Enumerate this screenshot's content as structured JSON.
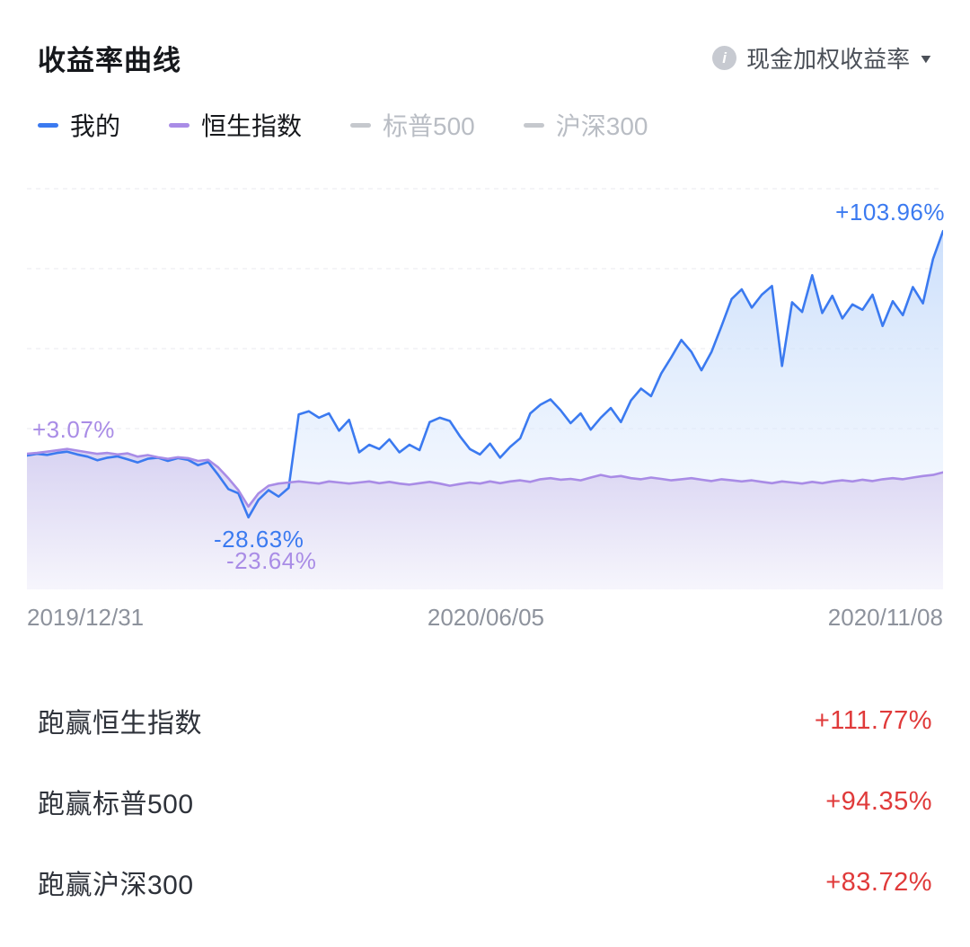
{
  "header": {
    "title": "收益率曲线",
    "return_type": "现金加权收益率",
    "info_glyph": "i",
    "caret_icon": "▼"
  },
  "legend": {
    "items": [
      {
        "label": "我的",
        "color": "#3b7af0",
        "active": true
      },
      {
        "label": "恒生指数",
        "color": "#a98ce6",
        "active": true
      },
      {
        "label": "标普500",
        "color": "#c5c8cd",
        "active": false
      },
      {
        "label": "沪深300",
        "color": "#c5c8cd",
        "active": false
      }
    ]
  },
  "chart_data": {
    "type": "line",
    "title": "收益率曲线",
    "x_axis_labels": [
      "2019/12/31",
      "2020/06/05",
      "2020/11/08"
    ],
    "ylim": [
      -62,
      124
    ],
    "grid": "dashed-horizontal",
    "legend_position": "top",
    "series": [
      {
        "name": "我的",
        "color": "#3b7af0",
        "fill_top": "#c7dcfb",
        "fill_bottom": "#eaf2fd",
        "fill_opacity_top": 0.92,
        "fill_opacity_bottom": 0.25,
        "values": [
          0,
          0.8,
          0.3,
          1.2,
          1.8,
          0.5,
          -0.5,
          -2.2,
          -1.0,
          -0.4,
          -1.8,
          -3.2,
          -1.5,
          -1.0,
          -2.5,
          -1.2,
          -2.0,
          -4.5,
          -3.0,
          -9.0,
          -15.5,
          -17.5,
          -28.63,
          -20.5,
          -16.0,
          -19.0,
          -15.0,
          19.0,
          20.5,
          17.5,
          19.5,
          11.5,
          16.5,
          1.5,
          5.0,
          3.0,
          7.5,
          1.5,
          5.0,
          2.5,
          15.5,
          17.5,
          16.0,
          9.0,
          3.0,
          0.5,
          5.5,
          -1.0,
          4.0,
          8.0,
          19.5,
          23.5,
          26.0,
          21.0,
          15.0,
          19.5,
          12.0,
          17.5,
          22.0,
          15.5,
          25.5,
          31.0,
          27.5,
          38.0,
          45.5,
          53.5,
          48.0,
          39.5,
          48.0,
          60.0,
          72.5,
          77.0,
          68.5,
          74.5,
          78.5,
          41.5,
          71.0,
          66.5,
          83.5,
          66.0,
          74.0,
          63.5,
          70.0,
          67.5,
          74.5,
          60.0,
          71.5,
          65.0,
          78.0,
          70.5,
          91.0,
          103.96
        ]
      },
      {
        "name": "恒生指数",
        "color": "#a98ce6",
        "fill_top": "#d6d0f1",
        "fill_bottom": "#f6f5fc",
        "fill_opacity_top": 0.93,
        "fill_opacity_bottom": 0.93,
        "values": [
          0.8,
          1.2,
          1.8,
          2.4,
          3.07,
          2.3,
          1.5,
          0.8,
          1.2,
          0.5,
          1.0,
          -0.5,
          0.2,
          -0.8,
          -1.5,
          -0.8,
          -1.2,
          -2.5,
          -2.0,
          -5.5,
          -10.5,
          -16.0,
          -23.64,
          -17.5,
          -14.0,
          -13.0,
          -12.5,
          -12.0,
          -12.5,
          -13.0,
          -12.0,
          -12.5,
          -13.0,
          -12.5,
          -12.0,
          -12.8,
          -12.2,
          -13.0,
          -13.5,
          -12.8,
          -12.2,
          -13.0,
          -14.0,
          -13.2,
          -12.5,
          -13.0,
          -12.0,
          -12.8,
          -12.0,
          -11.5,
          -12.2,
          -11.0,
          -10.5,
          -11.2,
          -10.8,
          -11.5,
          -10.2,
          -9.0,
          -10.0,
          -9.5,
          -10.5,
          -11.0,
          -10.2,
          -10.8,
          -11.5,
          -11.0,
          -10.5,
          -11.2,
          -11.8,
          -11.0,
          -11.5,
          -12.0,
          -11.5,
          -12.2,
          -12.8,
          -12.0,
          -12.5,
          -13.0,
          -12.2,
          -12.8,
          -12.0,
          -11.5,
          -12.0,
          -11.2,
          -11.8,
          -11.0,
          -10.5,
          -11.0,
          -10.2,
          -9.5,
          -9.0,
          -7.8
        ]
      }
    ],
    "annotations": [
      {
        "text": "+3.07%",
        "series": "恒生指数",
        "color": "#a98ce6",
        "position": "start-peak"
      },
      {
        "text": "-28.63%",
        "series": "我的",
        "color": "#3b7af0",
        "position": "trough"
      },
      {
        "text": "-23.64%",
        "series": "恒生指数",
        "color": "#a98ce6",
        "position": "trough"
      },
      {
        "text": "+103.96%",
        "series": "我的",
        "color": "#3b7af0",
        "position": "end"
      }
    ]
  },
  "stats": {
    "value_color": "#e03a3a",
    "rows": [
      {
        "label": "跑赢恒生指数",
        "value": "+111.77%"
      },
      {
        "label": "跑赢标普500",
        "value": "+94.35%"
      },
      {
        "label": "跑赢沪深300",
        "value": "+83.72%"
      }
    ]
  }
}
